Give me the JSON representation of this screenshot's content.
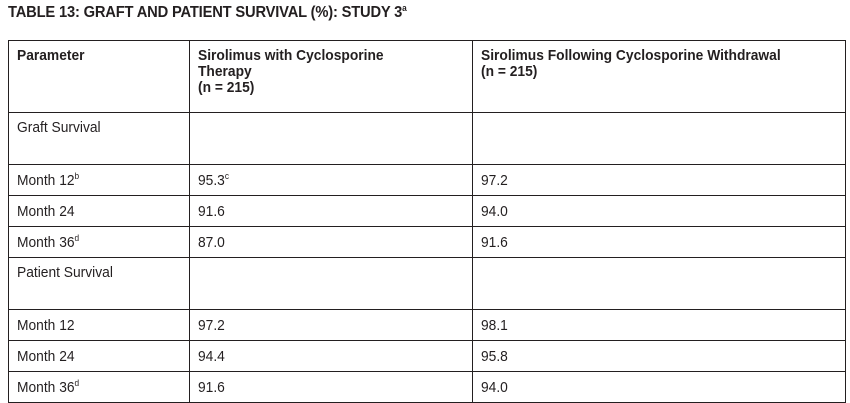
{
  "title": {
    "text": "TABLE 13: GRAFT AND PATIENT SURVIVAL (%): STUDY 3",
    "footnote": "a"
  },
  "table": {
    "headers": {
      "parameter": "Parameter",
      "col1_line1": "Sirolimus with Cyclosporine",
      "col1_line2": "Therapy",
      "col1_n": "(n = 215)",
      "col2_line1": "Sirolimus Following Cyclosporine Withdrawal",
      "col2_n": "(n = 215)"
    },
    "sections": [
      {
        "label": "Graft Survival",
        "rows": [
          {
            "label": "Month 12",
            "label_sup": "b",
            "v1": "95.3",
            "v1_sup": "c",
            "v2": "97.2"
          },
          {
            "label": "Month 24",
            "label_sup": "",
            "v1": "91.6",
            "v1_sup": "",
            "v2": "94.0"
          },
          {
            "label": "Month 36",
            "label_sup": "d",
            "v1": "87.0",
            "v1_sup": "",
            "v2": "91.6"
          }
        ]
      },
      {
        "label": "Patient Survival",
        "rows": [
          {
            "label": "Month 12",
            "label_sup": "",
            "v1": "97.2",
            "v1_sup": "",
            "v2": "98.1"
          },
          {
            "label": "Month 24",
            "label_sup": "",
            "v1": "94.4",
            "v1_sup": "",
            "v2": "95.8"
          },
          {
            "label": "Month 36",
            "label_sup": "d",
            "v1": "91.6",
            "v1_sup": "",
            "v2": "94.0"
          }
        ]
      }
    ]
  }
}
